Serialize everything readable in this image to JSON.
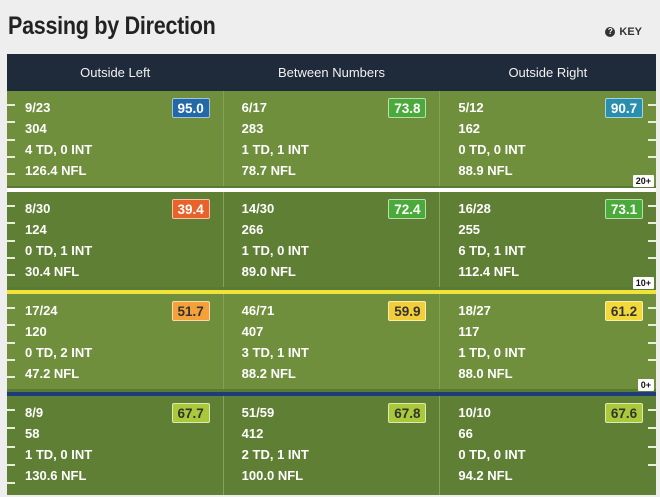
{
  "title": "Passing by Direction",
  "key_label": "KEY",
  "columns": [
    "Outside Left",
    "Between Numbers",
    "Outside Right"
  ],
  "colors": {
    "header_bg": "#1f2a3a",
    "field_light": "#6f8f3c",
    "field_dark": "#5f7f34",
    "line_white": "#ffffff",
    "line_yellow": "#f2e33a",
    "line_blue": "#1e3b7a"
  },
  "rows": [
    {
      "zone": "20+",
      "cells": [
        {
          "comp": "9/23",
          "yards": "304",
          "td_int": "4 TD, 0 INT",
          "rating": "126.4 NFL",
          "grade": "95.0",
          "grade_bg": "#2369a8",
          "grade_fg": "#ffffff"
        },
        {
          "comp": "6/17",
          "yards": "283",
          "td_int": "1 TD, 1 INT",
          "rating": "78.7 NFL",
          "grade": "73.8",
          "grade_bg": "#4bab3a",
          "grade_fg": "#ffffff"
        },
        {
          "comp": "5/12",
          "yards": "162",
          "td_int": "0 TD, 0 INT",
          "rating": "88.9 NFL",
          "grade": "90.7",
          "grade_bg": "#2a8faf",
          "grade_fg": "#ffffff"
        }
      ]
    },
    {
      "zone": "10+",
      "cells": [
        {
          "comp": "8/30",
          "yards": "124",
          "td_int": "0 TD, 1 INT",
          "rating": "30.4 NFL",
          "grade": "39.4",
          "grade_bg": "#e8622a",
          "grade_fg": "#ffffff"
        },
        {
          "comp": "14/30",
          "yards": "266",
          "td_int": "1 TD, 0 INT",
          "rating": "89.0 NFL",
          "grade": "72.4",
          "grade_bg": "#4bab3a",
          "grade_fg": "#ffffff"
        },
        {
          "comp": "16/28",
          "yards": "255",
          "td_int": "6 TD, 1 INT",
          "rating": "112.4 NFL",
          "grade": "73.1",
          "grade_bg": "#4bab3a",
          "grade_fg": "#ffffff"
        }
      ]
    },
    {
      "zone": "0+",
      "cells": [
        {
          "comp": "17/24",
          "yards": "120",
          "td_int": "0 TD, 2 INT",
          "rating": "47.2 NFL",
          "grade": "51.7",
          "grade_bg": "#f4a13a",
          "grade_fg": "#333333"
        },
        {
          "comp": "46/71",
          "yards": "407",
          "td_int": "3 TD, 1 INT",
          "rating": "88.2 NFL",
          "grade": "59.9",
          "grade_bg": "#f2cf3a",
          "grade_fg": "#333333"
        },
        {
          "comp": "18/27",
          "yards": "117",
          "td_int": "1 TD, 0 INT",
          "rating": "88.0 NFL",
          "grade": "61.2",
          "grade_bg": "#f2d83a",
          "grade_fg": "#333333"
        }
      ]
    },
    {
      "zone": "",
      "cells": [
        {
          "comp": "8/9",
          "yards": "58",
          "td_int": "1 TD, 0 INT",
          "rating": "130.6 NFL",
          "grade": "67.7",
          "grade_bg": "#a9c83a",
          "grade_fg": "#333333"
        },
        {
          "comp": "51/59",
          "yards": "412",
          "td_int": "2 TD, 1 INT",
          "rating": "100.0 NFL",
          "grade": "67.8",
          "grade_bg": "#a9c83a",
          "grade_fg": "#333333"
        },
        {
          "comp": "10/10",
          "yards": "66",
          "td_int": "0 TD, 0 INT",
          "rating": "94.2 NFL",
          "grade": "67.6",
          "grade_bg": "#a9c83a",
          "grade_fg": "#333333"
        }
      ]
    }
  ]
}
